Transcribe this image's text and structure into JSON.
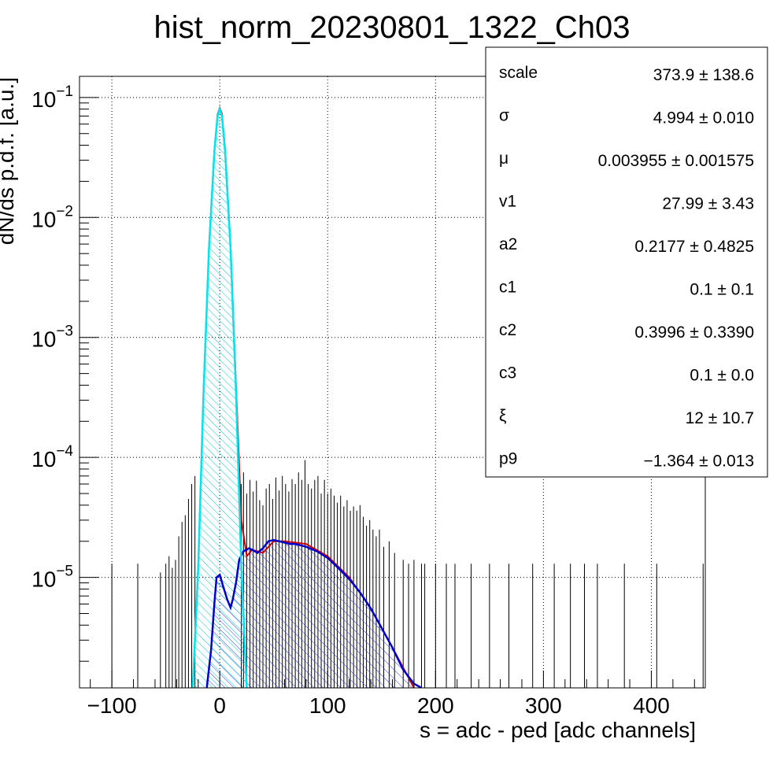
{
  "chart_data": {
    "type": "line",
    "title": "hist_norm_20230801_1322_Ch03",
    "xlabel": "s = adc - ped [adc channels]",
    "ylabel": "dN/ds p.d.f. [a.u.]",
    "xlim": [
      -130,
      450
    ],
    "ylim": [
      1.2e-06,
      0.15
    ],
    "yscale": "log",
    "grid": true,
    "x_ticks": [
      {
        "value": -100,
        "label": "−100"
      },
      {
        "value": 0,
        "label": "0"
      },
      {
        "value": 100,
        "label": "100"
      },
      {
        "value": 200,
        "label": "200"
      },
      {
        "value": 300,
        "label": "300"
      },
      {
        "value": 400,
        "label": "400"
      }
    ],
    "y_ticks": [
      {
        "value": 0.1,
        "base": "10",
        "exp": "−1"
      },
      {
        "value": 0.01,
        "base": "10",
        "exp": "−2"
      },
      {
        "value": 0.001,
        "base": "10",
        "exp": "−3"
      },
      {
        "value": 0.0001,
        "base": "10",
        "exp": "−4"
      },
      {
        "value": 1e-05,
        "base": "10",
        "exp": "−5"
      }
    ],
    "colors": {
      "histogram": "#000000",
      "total_fit": "#cc0000",
      "pedestal_component": "#00e5ee",
      "signal_component": "#0000cc"
    },
    "series": [
      {
        "role": "pedestal_component",
        "x": [
          -25,
          -20,
          -15,
          -10,
          -5,
          -2,
          0,
          2,
          5,
          10,
          15,
          20,
          25
        ],
        "y": [
          1.2e-06,
          1.2e-05,
          0.00035,
          0.0055,
          0.035,
          0.07,
          0.08,
          0.07,
          0.035,
          0.0055,
          0.00035,
          1.2e-05,
          1.2e-06
        ]
      },
      {
        "role": "total_fit",
        "x": [
          -25,
          -20,
          -15,
          -10,
          -5,
          -2,
          0,
          2,
          5,
          10,
          15,
          20,
          25,
          30,
          40,
          50,
          60,
          80,
          100,
          120,
          140,
          160,
          180
        ],
        "y": [
          1.2e-06,
          1.2e-05,
          0.00036,
          0.0056,
          0.036,
          0.072,
          0.082,
          0.073,
          0.037,
          0.0058,
          0.0004,
          3e-05,
          1.5e-05,
          1.7e-05,
          1.6e-05,
          2e-05,
          2e-05,
          1.9e-05,
          1.5e-05,
          1e-05,
          5.5e-06,
          2.6e-06,
          1.2e-06
        ]
      },
      {
        "role": "signal_component",
        "x": [
          -12,
          -8,
          -5,
          -3,
          0,
          3,
          7,
          10,
          12,
          15,
          18,
          22,
          27,
          30,
          35,
          40,
          45,
          50,
          55,
          60,
          65,
          70,
          75,
          80,
          90,
          100,
          110,
          120,
          130,
          140,
          150,
          160,
          170,
          180,
          187
        ],
        "y": [
          1.2e-06,
          2.5e-06,
          6e-06,
          1e-05,
          1.05e-05,
          8.5e-06,
          6.5e-06,
          5.6e-06,
          6.5e-06,
          9e-06,
          1.4e-05,
          1.65e-05,
          1.75e-05,
          1.7e-05,
          1.6e-05,
          1.75e-05,
          2e-05,
          2.05e-05,
          2e-05,
          1.95e-05,
          1.9e-05,
          1.9e-05,
          1.85e-05,
          1.8e-05,
          1.65e-05,
          1.45e-05,
          1.2e-05,
          9.7e-06,
          7.5e-06,
          5.5e-06,
          3.8e-06,
          2.6e-06,
          1.7e-06,
          1.3e-06,
          1.2e-06
        ]
      }
    ],
    "histogram_errors": [
      [
        -100,
        1.3e-05
      ],
      [
        -76,
        1.3e-05
      ],
      [
        -55,
        1.1e-05
      ],
      [
        -50,
        1.3e-05
      ],
      [
        -47,
        1.5e-05
      ],
      [
        -44,
        1.2e-05
      ],
      [
        -41,
        1.4e-05
      ],
      [
        -38,
        2.2e-05
      ],
      [
        -35,
        2.9e-05
      ],
      [
        -32,
        3.3e-05
      ],
      [
        -29,
        4.5e-05
      ],
      [
        -26,
        6e-05
      ],
      [
        -23,
        7e-05
      ],
      [
        20,
        6e-05
      ],
      [
        22,
        7.5e-05
      ],
      [
        25,
        5e-05
      ],
      [
        28,
        6.5e-05
      ],
      [
        31,
        5.2e-05
      ],
      [
        34,
        6.4e-05
      ],
      [
        37,
        4.4e-05
      ],
      [
        40,
        4e-05
      ],
      [
        43,
        5.5e-05
      ],
      [
        46,
        6e-05
      ],
      [
        49,
        4.5e-05
      ],
      [
        52,
        6.8e-05
      ],
      [
        55,
        5.3e-05
      ],
      [
        58,
        7e-05
      ],
      [
        61,
        6e-05
      ],
      [
        64,
        5.2e-05
      ],
      [
        67,
        6.6e-05
      ],
      [
        70,
        6e-05
      ],
      [
        73,
        7.5e-05
      ],
      [
        76,
        6.5e-05
      ],
      [
        79,
        9.5e-05
      ],
      [
        82,
        6e-05
      ],
      [
        85,
        5.5e-05
      ],
      [
        88,
        6.5e-05
      ],
      [
        91,
        7e-05
      ],
      [
        94,
        5e-05
      ],
      [
        97,
        6.5e-05
      ],
      [
        100,
        5e-05
      ],
      [
        103,
        5.5e-05
      ],
      [
        106,
        4.8e-05
      ],
      [
        109,
        4.2e-05
      ],
      [
        112,
        4.8e-05
      ],
      [
        115,
        3.9e-05
      ],
      [
        118,
        4.4e-05
      ],
      [
        121,
        3.6e-05
      ],
      [
        124,
        3.9e-05
      ],
      [
        127,
        3.6e-05
      ],
      [
        130,
        4e-05
      ],
      [
        133,
        3.2e-05
      ],
      [
        136,
        2.7e-05
      ],
      [
        139,
        3e-05
      ],
      [
        142,
        2.5e-05
      ],
      [
        145,
        2.2e-05
      ],
      [
        148,
        2.5e-05
      ],
      [
        152,
        1.8e-05
      ],
      [
        157,
        2e-05
      ],
      [
        162,
        1.6e-05
      ],
      [
        170,
        1.4e-05
      ],
      [
        175,
        1.3e-05
      ],
      [
        180,
        1.4e-05
      ],
      [
        187,
        1.3e-05
      ],
      [
        190,
        1.3e-05
      ],
      [
        200,
        1.3e-05
      ],
      [
        210,
        1.3e-05
      ],
      [
        218,
        1.3e-05
      ],
      [
        233,
        1.3e-05
      ],
      [
        250,
        1.3e-05
      ],
      [
        268,
        1.3e-05
      ],
      [
        290,
        1.3e-05
      ],
      [
        310,
        1.3e-05
      ],
      [
        325,
        1.3e-05
      ],
      [
        338,
        1.3e-05
      ],
      [
        350,
        1.3e-05
      ],
      [
        375,
        1.3e-05
      ],
      [
        405,
        1.3e-05
      ],
      [
        448,
        1.3e-05
      ]
    ]
  },
  "stats_box": {
    "rows": [
      {
        "label": "scale",
        "value": "373.9 ± 138.6"
      },
      {
        "label": "σ",
        "value": "4.994 ± 0.010"
      },
      {
        "label": "μ",
        "value": "0.003955 ± 0.001575"
      },
      {
        "label": "v1",
        "value": "27.99 ± 3.43"
      },
      {
        "label": "a2",
        "value": "0.2177 ± 0.4825"
      },
      {
        "label": "c1",
        "value": "0.1 ± 0.1"
      },
      {
        "label": "c2",
        "value": "0.3996 ± 0.3390"
      },
      {
        "label": "c3",
        "value": "0.1 ± 0.0"
      },
      {
        "label": "ξ",
        "value": "12 ± 10.7"
      },
      {
        "label": "p9",
        "value": "−1.364 ± 0.013"
      }
    ]
  }
}
